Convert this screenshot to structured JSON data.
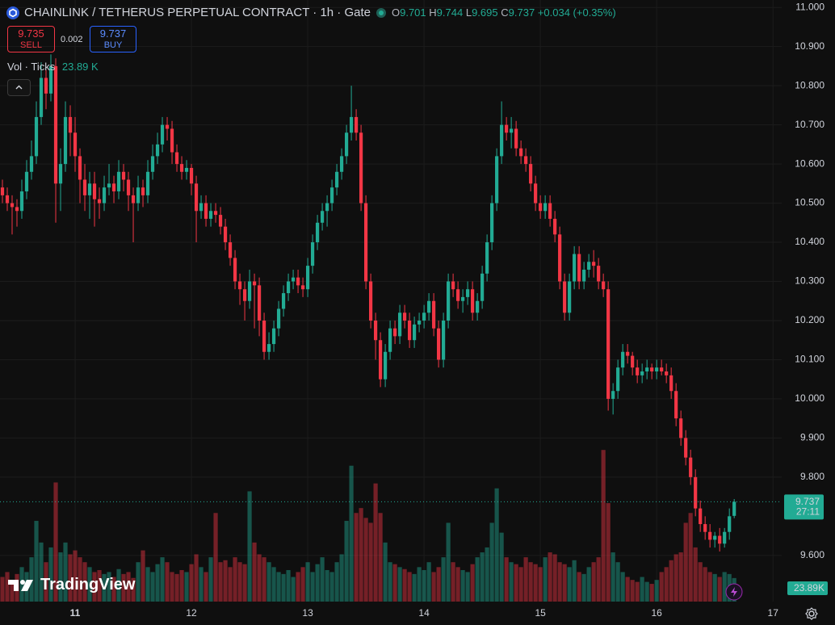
{
  "chart_data": {
    "type": "candlestick",
    "title": "CHAINLINK / TETHERUS PERPETUAL CONTRACT · 1h · Gate",
    "ohlc_letters": [
      "O",
      "H",
      "L",
      "C"
    ],
    "change": "+0.034 (+0.35%)",
    "sell_price": 9.735,
    "sell_label": "SELL",
    "spread": 0.002,
    "buy_price": 9.737,
    "buy_label": "BUY",
    "volume_name": "Vol · Ticks",
    "volume_legend_value": "23.89 K",
    "volume_axis_label": "23.89K",
    "countdown": "27:11",
    "brand": "TradingView",
    "up_color": "#22ab94",
    "down_color": "#f23645",
    "xlim": [
      -0.5,
      160.8
    ],
    "ylim": [
      9.482,
      11.019
    ],
    "vlim": [
      0,
      611000
    ],
    "xticks": [
      {
        "value": 15,
        "label": "11"
      },
      {
        "value": 39,
        "label": "12"
      },
      {
        "value": 63,
        "label": "13"
      },
      {
        "value": 87,
        "label": "14"
      },
      {
        "value": 111,
        "label": "15"
      },
      {
        "value": 135,
        "label": "16"
      },
      {
        "value": 159,
        "label": "17"
      }
    ],
    "yticks": [
      {
        "value": 9.6,
        "label": "9.600"
      },
      {
        "value": 9.8,
        "label": "9.800"
      },
      {
        "value": 9.9,
        "label": "9.900"
      },
      {
        "value": 10.0,
        "label": "10.000"
      },
      {
        "value": 10.1,
        "label": "10.100"
      },
      {
        "value": 10.2,
        "label": "10.200"
      },
      {
        "value": 10.3,
        "label": "10.300"
      },
      {
        "value": 10.4,
        "label": "10.400"
      },
      {
        "value": 10.5,
        "label": "10.500"
      },
      {
        "value": 10.6,
        "label": "10.600"
      },
      {
        "value": 10.7,
        "label": "10.700"
      },
      {
        "value": 10.8,
        "label": "10.800"
      },
      {
        "value": 10.9,
        "label": "10.900"
      },
      {
        "value": 11.0,
        "label": "11.000"
      }
    ],
    "grid": true,
    "candles": [
      [
        10.54,
        10.56,
        10.5,
        10.52
      ],
      [
        10.52,
        10.54,
        10.48,
        10.5
      ],
      [
        10.5,
        10.52,
        10.42,
        10.49
      ],
      [
        10.49,
        10.51,
        10.44,
        10.48
      ],
      [
        10.48,
        10.56,
        10.46,
        10.53
      ],
      [
        10.53,
        10.61,
        10.51,
        10.58
      ],
      [
        10.58,
        10.66,
        10.56,
        10.62
      ],
      [
        10.62,
        10.76,
        10.6,
        10.72
      ],
      [
        10.72,
        10.86,
        10.7,
        10.82
      ],
      [
        10.82,
        10.84,
        10.74,
        10.78
      ],
      [
        10.78,
        10.88,
        10.76,
        10.85
      ],
      [
        10.85,
        10.87,
        10.45,
        10.55
      ],
      [
        10.55,
        10.64,
        10.48,
        10.6
      ],
      [
        10.6,
        10.76,
        10.58,
        10.72
      ],
      [
        10.72,
        10.75,
        10.62,
        10.68
      ],
      [
        10.68,
        10.72,
        10.58,
        10.62
      ],
      [
        10.62,
        10.64,
        10.5,
        10.56
      ],
      [
        10.56,
        10.6,
        10.48,
        10.52
      ],
      [
        10.52,
        10.58,
        10.46,
        10.55
      ],
      [
        10.55,
        10.58,
        10.44,
        10.51
      ],
      [
        10.51,
        10.54,
        10.46,
        10.5
      ],
      [
        10.5,
        10.57,
        10.48,
        10.54
      ],
      [
        10.54,
        10.6,
        10.52,
        10.55
      ],
      [
        10.55,
        10.57,
        10.5,
        10.53
      ],
      [
        10.53,
        10.61,
        10.51,
        10.58
      ],
      [
        10.58,
        10.6,
        10.53,
        10.56
      ],
      [
        10.56,
        10.58,
        10.48,
        10.52
      ],
      [
        10.52,
        10.54,
        10.4,
        10.5
      ],
      [
        10.5,
        10.57,
        10.48,
        10.54
      ],
      [
        10.54,
        10.56,
        10.49,
        10.52
      ],
      [
        10.52,
        10.61,
        10.5,
        10.58
      ],
      [
        10.58,
        10.65,
        10.56,
        10.62
      ],
      [
        10.62,
        10.68,
        10.6,
        10.65
      ],
      [
        10.65,
        10.72,
        10.63,
        10.7
      ],
      [
        10.7,
        10.72,
        10.66,
        10.69
      ],
      [
        10.69,
        10.71,
        10.6,
        10.63
      ],
      [
        10.63,
        10.65,
        10.58,
        10.6
      ],
      [
        10.6,
        10.62,
        10.56,
        10.58
      ],
      [
        10.58,
        10.61,
        10.56,
        10.59
      ],
      [
        10.59,
        10.6,
        10.52,
        10.55
      ],
      [
        10.55,
        10.57,
        10.4,
        10.48
      ],
      [
        10.48,
        10.52,
        10.46,
        10.5
      ],
      [
        10.5,
        10.52,
        10.44,
        10.46
      ],
      [
        10.46,
        10.5,
        10.44,
        10.48
      ],
      [
        10.48,
        10.5,
        10.45,
        10.47
      ],
      [
        10.47,
        10.49,
        10.42,
        10.44
      ],
      [
        10.44,
        10.46,
        10.38,
        10.4
      ],
      [
        10.4,
        10.42,
        10.34,
        10.36
      ],
      [
        10.36,
        10.38,
        10.28,
        10.3
      ],
      [
        10.3,
        10.32,
        10.24,
        10.28
      ],
      [
        10.28,
        10.3,
        10.2,
        10.25
      ],
      [
        10.25,
        10.33,
        10.23,
        10.3
      ],
      [
        10.3,
        10.32,
        10.18,
        10.29
      ],
      [
        10.29,
        10.31,
        10.16,
        10.2
      ],
      [
        10.2,
        10.22,
        10.1,
        10.12
      ],
      [
        10.12,
        10.17,
        10.1,
        10.14
      ],
      [
        10.14,
        10.2,
        10.12,
        10.18
      ],
      [
        10.18,
        10.25,
        10.16,
        10.23
      ],
      [
        10.23,
        10.29,
        10.21,
        10.27
      ],
      [
        10.27,
        10.32,
        10.25,
        10.3
      ],
      [
        10.3,
        10.33,
        10.28,
        10.31
      ],
      [
        10.31,
        10.33,
        10.27,
        10.29
      ],
      [
        10.29,
        10.31,
        10.26,
        10.28
      ],
      [
        10.28,
        10.36,
        10.26,
        10.34
      ],
      [
        10.34,
        10.42,
        10.32,
        10.4
      ],
      [
        10.4,
        10.47,
        10.38,
        10.45
      ],
      [
        10.45,
        10.5,
        10.43,
        10.48
      ],
      [
        10.48,
        10.52,
        10.44,
        10.5
      ],
      [
        10.5,
        10.56,
        10.48,
        10.54
      ],
      [
        10.54,
        10.6,
        10.52,
        10.58
      ],
      [
        10.58,
        10.64,
        10.56,
        10.62
      ],
      [
        10.62,
        10.7,
        10.6,
        10.68
      ],
      [
        10.68,
        10.8,
        10.66,
        10.72
      ],
      [
        10.72,
        10.74,
        10.66,
        10.68
      ],
      [
        10.68,
        10.7,
        10.48,
        10.5
      ],
      [
        10.5,
        10.52,
        10.28,
        10.3
      ],
      [
        10.3,
        10.32,
        10.18,
        10.2
      ],
      [
        10.2,
        10.22,
        10.1,
        10.15
      ],
      [
        10.15,
        10.17,
        10.03,
        10.05
      ],
      [
        10.05,
        10.14,
        10.03,
        10.12
      ],
      [
        10.12,
        10.2,
        10.1,
        10.18
      ],
      [
        10.18,
        10.2,
        10.14,
        10.16
      ],
      [
        10.16,
        10.24,
        10.14,
        10.22
      ],
      [
        10.22,
        10.24,
        10.18,
        10.2
      ],
      [
        10.2,
        10.22,
        10.13,
        10.15
      ],
      [
        10.15,
        10.21,
        10.13,
        10.19
      ],
      [
        10.19,
        10.22,
        10.17,
        10.2
      ],
      [
        10.2,
        10.24,
        10.18,
        10.22
      ],
      [
        10.22,
        10.27,
        10.2,
        10.25
      ],
      [
        10.25,
        10.27,
        10.16,
        10.18
      ],
      [
        10.18,
        10.2,
        10.08,
        10.1
      ],
      [
        10.1,
        10.22,
        10.08,
        10.2
      ],
      [
        10.2,
        10.32,
        10.18,
        10.3
      ],
      [
        10.3,
        10.32,
        10.26,
        10.28
      ],
      [
        10.28,
        10.3,
        10.23,
        10.25
      ],
      [
        10.25,
        10.28,
        10.22,
        10.26
      ],
      [
        10.26,
        10.3,
        10.24,
        10.28
      ],
      [
        10.28,
        10.3,
        10.2,
        10.22
      ],
      [
        10.22,
        10.27,
        10.2,
        10.25
      ],
      [
        10.25,
        10.34,
        10.23,
        10.32
      ],
      [
        10.32,
        10.42,
        10.3,
        10.4
      ],
      [
        10.4,
        10.52,
        10.38,
        10.5
      ],
      [
        10.5,
        10.64,
        10.48,
        10.62
      ],
      [
        10.62,
        10.76,
        10.6,
        10.7
      ],
      [
        10.7,
        10.72,
        10.66,
        10.68
      ],
      [
        10.68,
        10.72,
        10.64,
        10.69
      ],
      [
        10.69,
        10.71,
        10.62,
        10.64
      ],
      [
        10.64,
        10.66,
        10.6,
        10.62
      ],
      [
        10.62,
        10.64,
        10.58,
        10.6
      ],
      [
        10.6,
        10.62,
        10.53,
        10.55
      ],
      [
        10.55,
        10.57,
        10.48,
        10.5
      ],
      [
        10.5,
        10.52,
        10.46,
        10.48
      ],
      [
        10.48,
        10.52,
        10.46,
        10.5
      ],
      [
        10.5,
        10.52,
        10.44,
        10.46
      ],
      [
        10.46,
        10.48,
        10.4,
        10.42
      ],
      [
        10.42,
        10.44,
        10.28,
        10.3
      ],
      [
        10.3,
        10.32,
        10.2,
        10.22
      ],
      [
        10.22,
        10.32,
        10.2,
        10.3
      ],
      [
        10.3,
        10.39,
        10.28,
        10.37
      ],
      [
        10.37,
        10.39,
        10.28,
        10.3
      ],
      [
        10.3,
        10.35,
        10.28,
        10.33
      ],
      [
        10.33,
        10.37,
        10.31,
        10.35
      ],
      [
        10.35,
        10.38,
        10.31,
        10.34
      ],
      [
        10.34,
        10.36,
        10.28,
        10.3
      ],
      [
        10.3,
        10.32,
        10.26,
        10.28
      ],
      [
        10.28,
        10.3,
        9.97,
        10.0
      ],
      [
        10.0,
        10.04,
        9.96,
        10.02
      ],
      [
        10.02,
        10.1,
        10.0,
        10.08
      ],
      [
        10.08,
        10.14,
        10.06,
        10.12
      ],
      [
        10.12,
        10.14,
        10.09,
        10.11
      ],
      [
        10.11,
        10.12,
        10.06,
        10.08
      ],
      [
        10.08,
        10.1,
        10.04,
        10.06
      ],
      [
        10.06,
        10.09,
        10.04,
        10.07
      ],
      [
        10.07,
        10.1,
        10.05,
        10.08
      ],
      [
        10.08,
        10.09,
        10.05,
        10.07
      ],
      [
        10.07,
        10.1,
        10.05,
        10.08
      ],
      [
        10.08,
        10.1,
        10.06,
        10.07
      ],
      [
        10.07,
        10.09,
        10.04,
        10.06
      ],
      [
        10.06,
        10.08,
        10.0,
        10.02
      ],
      [
        10.02,
        10.04,
        9.93,
        9.95
      ],
      [
        9.95,
        9.97,
        9.88,
        9.9
      ],
      [
        9.9,
        9.92,
        9.83,
        9.85
      ],
      [
        9.85,
        9.87,
        9.78,
        9.8
      ],
      [
        9.8,
        9.82,
        9.7,
        9.72
      ],
      [
        9.72,
        9.74,
        9.66,
        9.68
      ],
      [
        9.68,
        9.7,
        9.64,
        9.66
      ],
      [
        9.66,
        9.68,
        9.62,
        9.64
      ],
      [
        9.64,
        9.66,
        9.62,
        9.65
      ],
      [
        9.65,
        9.67,
        9.61,
        9.63
      ],
      [
        9.63,
        9.67,
        9.62,
        9.66
      ],
      [
        9.66,
        9.72,
        9.64,
        9.7
      ],
      [
        9.701,
        9.744,
        9.695,
        9.737
      ]
    ],
    "volume": [
      25000,
      30000,
      22000,
      28000,
      35000,
      30000,
      45000,
      82000,
      60000,
      40000,
      55000,
      121000,
      50000,
      60000,
      48000,
      52000,
      45000,
      40000,
      35000,
      30000,
      32000,
      28000,
      30000,
      25000,
      33000,
      28000,
      30000,
      24000,
      40000,
      52000,
      35000,
      30000,
      38000,
      45000,
      40000,
      30000,
      28000,
      32000,
      30000,
      38000,
      48000,
      35000,
      30000,
      45000,
      90000,
      40000,
      42000,
      35000,
      45000,
      40000,
      38000,
      112000,
      60000,
      48000,
      45000,
      40000,
      35000,
      30000,
      28000,
      32000,
      25000,
      30000,
      35000,
      40000,
      30000,
      38000,
      45000,
      32000,
      30000,
      40000,
      48000,
      82000,
      138000,
      90000,
      95000,
      85000,
      80000,
      120000,
      90000,
      60000,
      40000,
      38000,
      35000,
      33000,
      30000,
      28000,
      35000,
      32000,
      40000,
      30000,
      35000,
      45000,
      80000,
      40000,
      35000,
      32000,
      30000,
      38000,
      45000,
      50000,
      55000,
      80000,
      115000,
      70000,
      45000,
      40000,
      38000,
      35000,
      45000,
      40000,
      38000,
      35000,
      45000,
      50000,
      48000,
      40000,
      38000,
      35000,
      42000,
      30000,
      28000,
      35000,
      40000,
      45000,
      154000,
      100000,
      50000,
      40000,
      30000,
      25000,
      22000,
      20000,
      25000,
      20000,
      18000,
      22000,
      30000,
      35000,
      42000,
      48000,
      50000,
      80000,
      90000,
      55000,
      40000,
      35000,
      30000,
      28000,
      25000,
      30000,
      28000,
      23890
    ]
  }
}
